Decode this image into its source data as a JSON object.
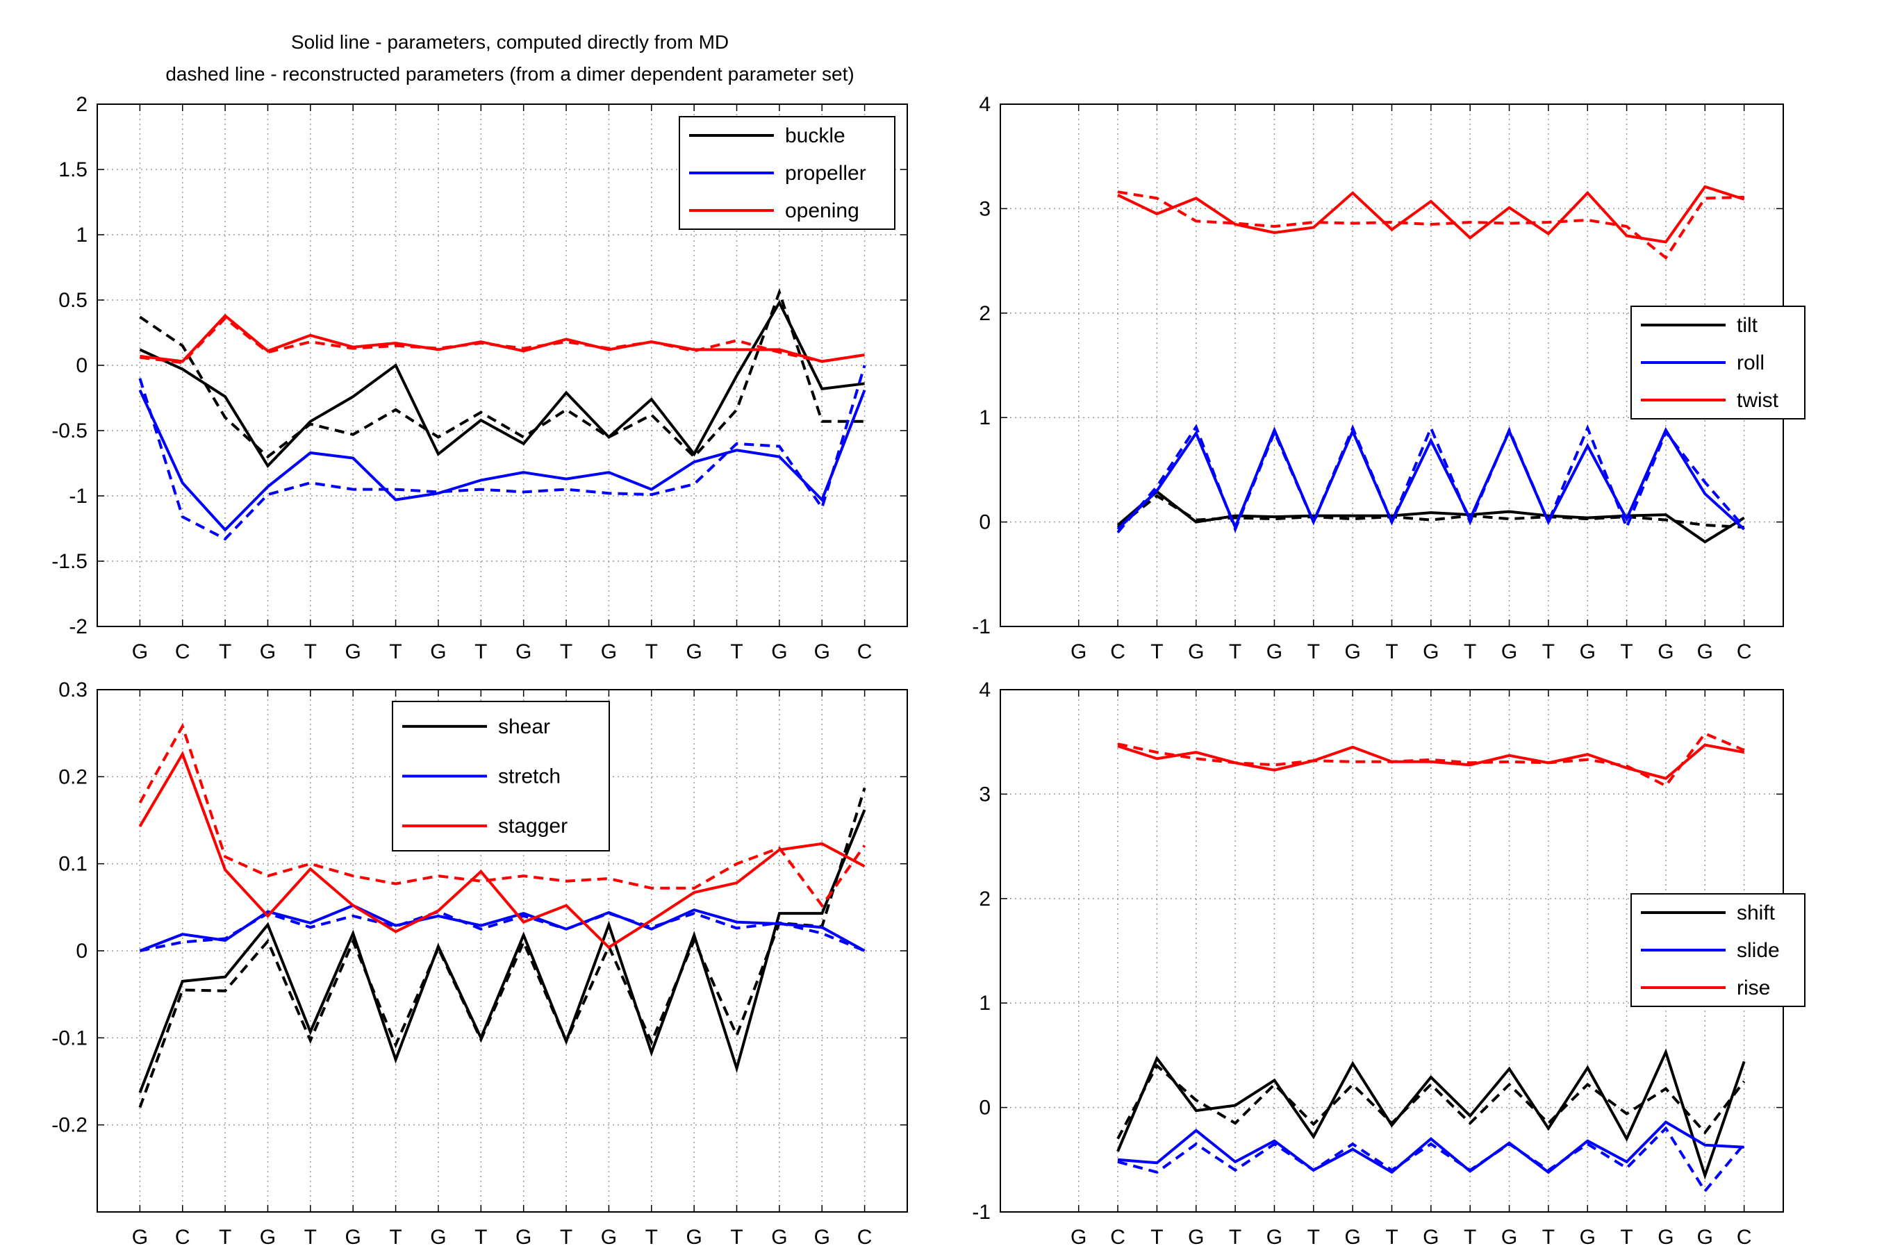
{
  "figure": {
    "title_lines": [
      "Solid line - parameters, computed directly from MD",
      "dashed line - reconstructed parameters (from a dimer dependent parameter set)"
    ]
  },
  "chart_data": [
    {
      "id": "base-pair-angles",
      "type": "line",
      "title": "",
      "x": [
        "G",
        "C",
        "T",
        "G",
        "T",
        "G",
        "T",
        "G",
        "T",
        "G",
        "T",
        "G",
        "T",
        "G",
        "T",
        "G",
        "G",
        "C"
      ],
      "ylim": [
        -2,
        2
      ],
      "yticks": [
        -2,
        -1.5,
        -1,
        -0.5,
        0,
        0.5,
        1,
        1.5,
        2
      ],
      "ytick_labels": [
        "-2",
        "-1.5",
        "-1",
        "-0.5",
        "0",
        "0.5",
        "1",
        "1.5",
        "2"
      ],
      "grid": true,
      "legend": {
        "placement": "top-right",
        "entries": [
          {
            "label": "buckle",
            "color": "#000000"
          },
          {
            "label": "propeller",
            "color": "#0000ff"
          },
          {
            "label": "opening",
            "color": "#ff0000"
          }
        ]
      },
      "series": [
        {
          "label": "buckle",
          "color": "#000000",
          "dashed": false,
          "values": [
            0.12,
            -0.03,
            -0.24,
            -0.77,
            -0.43,
            -0.24,
            0.0,
            -0.68,
            -0.42,
            -0.6,
            -0.21,
            -0.55,
            -0.26,
            -0.68,
            -0.08,
            0.48,
            -0.18,
            -0.14
          ]
        },
        {
          "label": "buckle",
          "color": "#000000",
          "dashed": true,
          "values": [
            0.37,
            0.15,
            -0.4,
            -0.7,
            -0.45,
            -0.53,
            -0.34,
            -0.55,
            -0.36,
            -0.55,
            -0.34,
            -0.55,
            -0.38,
            -0.7,
            -0.34,
            0.56,
            -0.43,
            -0.43
          ]
        },
        {
          "label": "propeller",
          "color": "#0000ff",
          "dashed": false,
          "values": [
            -0.19,
            -0.9,
            -1.26,
            -0.93,
            -0.67,
            -0.71,
            -1.03,
            -0.98,
            -0.88,
            -0.82,
            -0.87,
            -0.82,
            -0.95,
            -0.74,
            -0.65,
            -0.7,
            -1.03,
            -0.19
          ]
        },
        {
          "label": "propeller",
          "color": "#0000ff",
          "dashed": true,
          "values": [
            -0.1,
            -1.16,
            -1.33,
            -0.99,
            -0.9,
            -0.95,
            -0.95,
            -0.97,
            -0.95,
            -0.97,
            -0.95,
            -0.98,
            -0.99,
            -0.91,
            -0.6,
            -0.62,
            -1.09,
            0.0
          ]
        },
        {
          "label": "opening",
          "color": "#ff0000",
          "dashed": false,
          "values": [
            0.07,
            0.03,
            0.38,
            0.11,
            0.23,
            0.14,
            0.17,
            0.12,
            0.18,
            0.11,
            0.2,
            0.12,
            0.18,
            0.12,
            0.12,
            0.12,
            0.03,
            0.08
          ]
        },
        {
          "label": "opening",
          "color": "#ff0000",
          "dashed": true,
          "values": [
            0.06,
            0.02,
            0.36,
            0.1,
            0.18,
            0.13,
            0.15,
            0.13,
            0.17,
            0.13,
            0.18,
            0.13,
            0.18,
            0.11,
            0.19,
            0.1,
            0.03,
            0.08
          ]
        }
      ]
    },
    {
      "id": "step-angles",
      "type": "line",
      "title": "",
      "x": [
        "G",
        "C",
        "T",
        "G",
        "T",
        "G",
        "T",
        "G",
        "T",
        "G",
        "T",
        "G",
        "T",
        "G",
        "T",
        "G",
        "G",
        "C"
      ],
      "ylim": [
        -1,
        4
      ],
      "yticks": [
        -1,
        0,
        1,
        2,
        3,
        4
      ],
      "ytick_labels": [
        "-1",
        "0",
        "1",
        "2",
        "3",
        "4"
      ],
      "grid": true,
      "legend": {
        "placement": "right",
        "entries": [
          {
            "label": "tilt",
            "color": "#000000"
          },
          {
            "label": "roll",
            "color": "#0000ff"
          },
          {
            "label": "twist",
            "color": "#ff0000"
          }
        ]
      },
      "series": [
        {
          "label": "tilt",
          "color": "#000000",
          "dashed": false,
          "values": [
            null,
            -0.03,
            0.29,
            0.0,
            0.06,
            0.05,
            0.06,
            0.06,
            0.06,
            0.09,
            0.07,
            0.1,
            0.06,
            0.04,
            0.06,
            0.07,
            -0.19,
            0.04
          ]
        },
        {
          "label": "tilt",
          "color": "#000000",
          "dashed": true,
          "values": [
            null,
            -0.05,
            0.25,
            0.02,
            0.04,
            0.03,
            0.05,
            0.03,
            0.05,
            0.02,
            0.06,
            0.03,
            0.05,
            0.03,
            0.05,
            0.02,
            -0.03,
            -0.05
          ]
        },
        {
          "label": "roll",
          "color": "#0000ff",
          "dashed": false,
          "values": [
            null,
            -0.07,
            0.3,
            0.85,
            -0.05,
            0.88,
            0.0,
            0.87,
            0.0,
            0.78,
            0.03,
            0.87,
            0.0,
            0.73,
            0.03,
            0.88,
            0.27,
            -0.07
          ]
        },
        {
          "label": "roll",
          "color": "#0000ff",
          "dashed": true,
          "values": [
            null,
            -0.1,
            0.34,
            0.91,
            -0.07,
            0.86,
            0.0,
            0.9,
            0.0,
            0.9,
            0.0,
            0.88,
            0.0,
            0.9,
            -0.05,
            0.86,
            0.38,
            -0.05
          ]
        },
        {
          "label": "twist",
          "color": "#ff0000",
          "dashed": false,
          "values": [
            null,
            3.13,
            2.95,
            3.1,
            2.85,
            2.77,
            2.82,
            3.15,
            2.8,
            3.07,
            2.72,
            3.01,
            2.76,
            3.15,
            2.74,
            2.68,
            3.21,
            3.09
          ]
        },
        {
          "label": "twist",
          "color": "#ff0000",
          "dashed": true,
          "values": [
            null,
            3.16,
            3.1,
            2.88,
            2.86,
            2.83,
            2.87,
            2.86,
            2.87,
            2.85,
            2.87,
            2.86,
            2.87,
            2.89,
            2.83,
            2.53,
            3.1,
            3.11
          ]
        }
      ]
    },
    {
      "id": "base-pair-translations",
      "type": "line",
      "title": "",
      "x": [
        "G",
        "C",
        "T",
        "G",
        "T",
        "G",
        "T",
        "G",
        "T",
        "G",
        "T",
        "G",
        "T",
        "G",
        "T",
        "G",
        "G",
        "C"
      ],
      "ylim": [
        -0.3,
        0.3
      ],
      "yticks": [
        -0.2,
        -0.1,
        0,
        0.1,
        0.2,
        0.3
      ],
      "ytick_labels": [
        "-0.2",
        "-0.1",
        "0",
        "0.1",
        "0.2",
        "0.3"
      ],
      "grid": true,
      "legend": {
        "placement": "top-center",
        "entries": [
          {
            "label": "shear",
            "color": "#000000"
          },
          {
            "label": "stretch",
            "color": "#0000ff"
          },
          {
            "label": "stagger",
            "color": "#ff0000"
          }
        ]
      },
      "series": [
        {
          "label": "shear",
          "color": "#000000",
          "dashed": false,
          "values": [
            -0.163,
            -0.035,
            -0.03,
            0.03,
            -0.093,
            0.02,
            -0.125,
            0.005,
            -0.1,
            0.018,
            -0.104,
            0.03,
            -0.117,
            0.018,
            -0.135,
            0.043,
            0.043,
            0.162
          ]
        },
        {
          "label": "shear",
          "color": "#000000",
          "dashed": true,
          "values": [
            -0.18,
            -0.045,
            -0.046,
            0.011,
            -0.103,
            0.011,
            -0.108,
            0.003,
            -0.102,
            0.01,
            -0.104,
            0.005,
            -0.105,
            0.012,
            -0.097,
            0.032,
            0.028,
            0.187
          ]
        },
        {
          "label": "stretch",
          "color": "#0000ff",
          "dashed": false,
          "values": [
            0.0,
            0.019,
            0.012,
            0.045,
            0.032,
            0.052,
            0.029,
            0.04,
            0.029,
            0.043,
            0.025,
            0.044,
            0.025,
            0.047,
            0.033,
            0.031,
            0.027,
            0.0
          ]
        },
        {
          "label": "stretch",
          "color": "#0000ff",
          "dashed": true,
          "values": [
            0.0,
            0.01,
            0.014,
            0.043,
            0.027,
            0.04,
            0.028,
            0.045,
            0.025,
            0.04,
            0.025,
            0.043,
            0.027,
            0.043,
            0.026,
            0.032,
            0.02,
            0.0
          ]
        },
        {
          "label": "stagger",
          "color": "#ff0000",
          "dashed": false,
          "values": [
            0.143,
            0.226,
            0.093,
            0.04,
            0.094,
            0.052,
            0.022,
            0.046,
            0.091,
            0.033,
            0.052,
            0.004,
            0.035,
            0.067,
            0.078,
            0.116,
            0.123,
            0.097
          ]
        },
        {
          "label": "stagger",
          "color": "#ff0000",
          "dashed": true,
          "values": [
            0.17,
            0.258,
            0.108,
            0.086,
            0.1,
            0.086,
            0.077,
            0.086,
            0.08,
            0.086,
            0.08,
            0.083,
            0.072,
            0.072,
            0.1,
            0.118,
            0.052,
            0.121
          ]
        }
      ]
    },
    {
      "id": "step-translations",
      "type": "line",
      "title": "",
      "x": [
        "G",
        "C",
        "T",
        "G",
        "T",
        "G",
        "T",
        "G",
        "T",
        "G",
        "T",
        "G",
        "T",
        "G",
        "T",
        "G",
        "G",
        "C"
      ],
      "ylim": [
        -1,
        4
      ],
      "yticks": [
        -1,
        0,
        1,
        2,
        3,
        4
      ],
      "ytick_labels": [
        "-1",
        "0",
        "1",
        "2",
        "3",
        "4"
      ],
      "grid": true,
      "legend": {
        "placement": "right",
        "entries": [
          {
            "label": "shift",
            "color": "#000000"
          },
          {
            "label": "slide",
            "color": "#0000ff"
          },
          {
            "label": "rise",
            "color": "#ff0000"
          }
        ]
      },
      "series": [
        {
          "label": "shift",
          "color": "#000000",
          "dashed": false,
          "values": [
            null,
            -0.42,
            0.47,
            -0.03,
            0.02,
            0.26,
            -0.28,
            0.42,
            -0.17,
            0.29,
            -0.08,
            0.37,
            -0.2,
            0.38,
            -0.3,
            0.53,
            -0.65,
            0.44
          ]
        },
        {
          "label": "shift",
          "color": "#000000",
          "dashed": true,
          "values": [
            null,
            -0.3,
            0.4,
            0.07,
            -0.15,
            0.22,
            -0.16,
            0.22,
            -0.15,
            0.22,
            -0.15,
            0.22,
            -0.15,
            0.22,
            -0.06,
            0.18,
            -0.24,
            0.25
          ]
        },
        {
          "label": "slide",
          "color": "#0000ff",
          "dashed": false,
          "values": [
            null,
            -0.5,
            -0.53,
            -0.22,
            -0.52,
            -0.32,
            -0.6,
            -0.4,
            -0.62,
            -0.3,
            -0.61,
            -0.34,
            -0.62,
            -0.32,
            -0.52,
            -0.14,
            -0.36,
            -0.38
          ]
        },
        {
          "label": "slide",
          "color": "#0000ff",
          "dashed": true,
          "values": [
            null,
            -0.52,
            -0.62,
            -0.35,
            -0.6,
            -0.35,
            -0.6,
            -0.35,
            -0.6,
            -0.35,
            -0.6,
            -0.35,
            -0.6,
            -0.35,
            -0.58,
            -0.2,
            -0.8,
            -0.35
          ]
        },
        {
          "label": "rise",
          "color": "#ff0000",
          "dashed": false,
          "values": [
            null,
            3.46,
            3.34,
            3.4,
            3.3,
            3.23,
            3.32,
            3.45,
            3.31,
            3.31,
            3.28,
            3.37,
            3.3,
            3.38,
            3.25,
            3.15,
            3.47,
            3.4
          ]
        },
        {
          "label": "rise",
          "color": "#ff0000",
          "dashed": true,
          "values": [
            null,
            3.48,
            3.4,
            3.34,
            3.3,
            3.28,
            3.32,
            3.31,
            3.31,
            3.33,
            3.3,
            3.31,
            3.3,
            3.33,
            3.27,
            3.08,
            3.58,
            3.42
          ]
        }
      ]
    }
  ]
}
